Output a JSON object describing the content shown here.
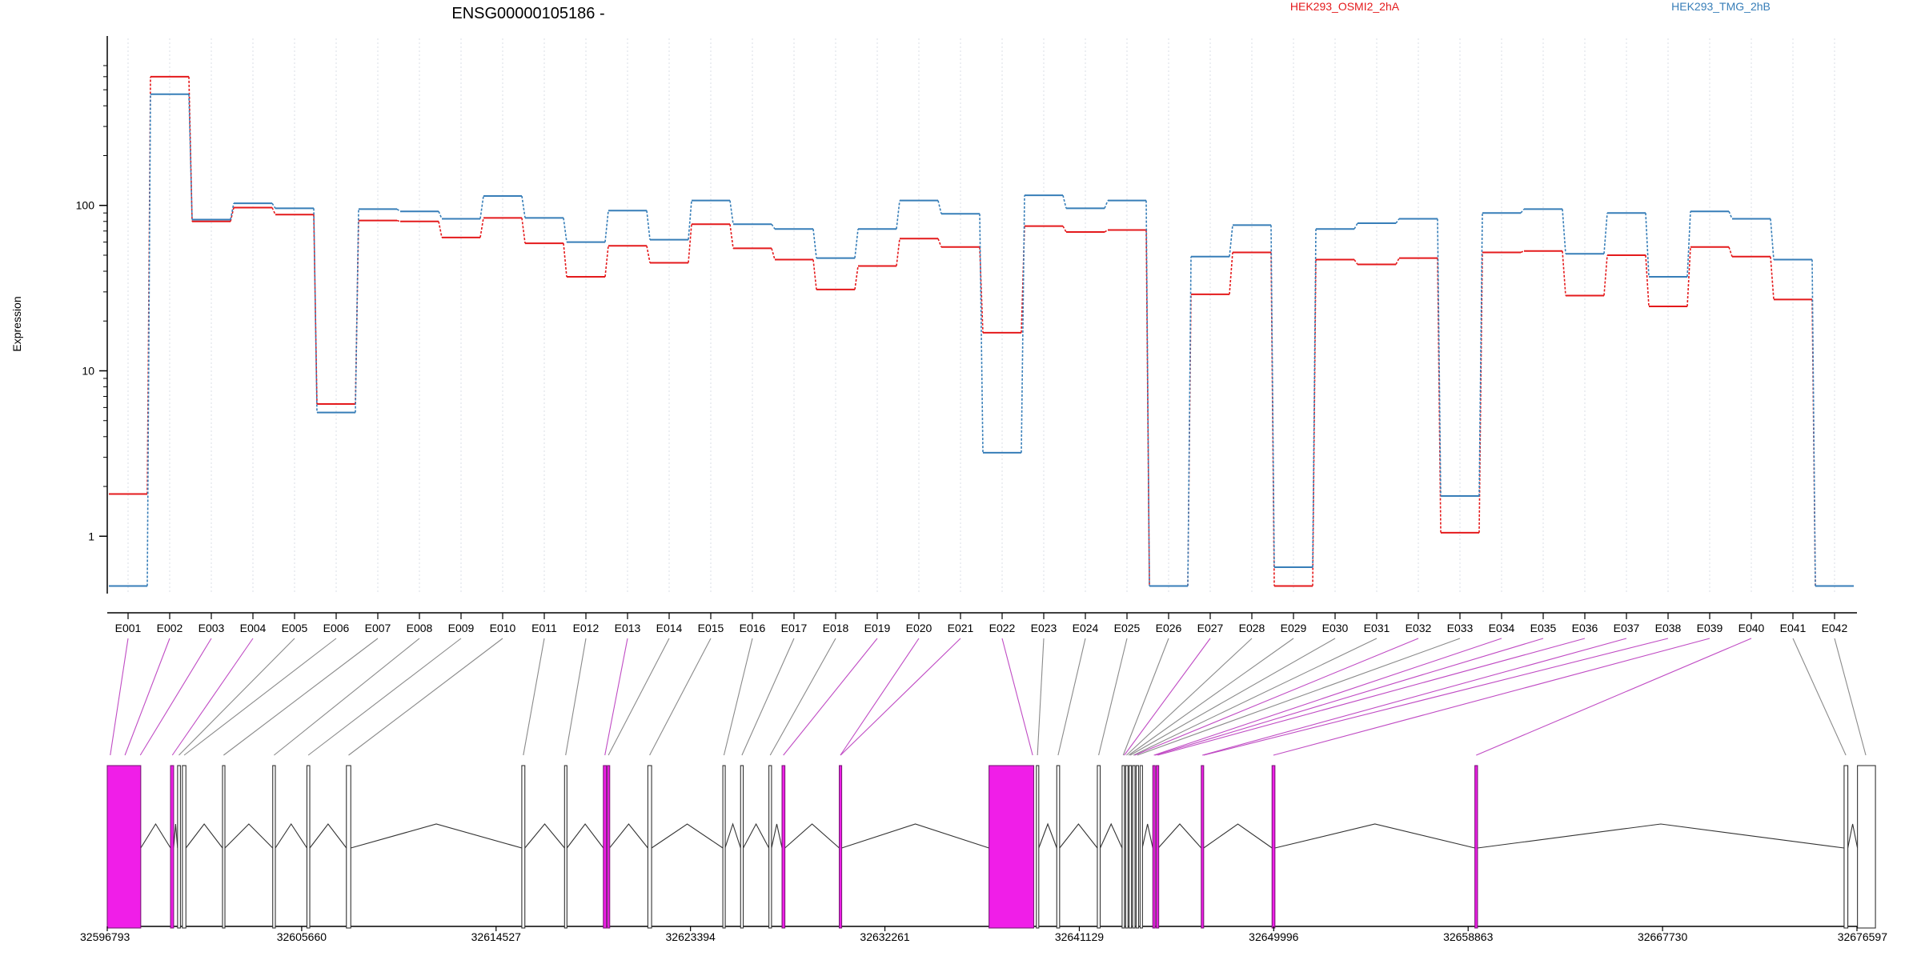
{
  "chart_data": {
    "type": "line",
    "title": "ENSG00000105186 -",
    "ylabel": "Expression",
    "xlabel": "",
    "yscale": "log",
    "ylim": [
      0.45,
      800
    ],
    "yticks": [
      1,
      10,
      100
    ],
    "grid": "vertical dotted lines at exon positions",
    "legend_position": "top",
    "categories": [
      "E001",
      "E002",
      "E003",
      "E004",
      "E005",
      "E006",
      "E007",
      "E008",
      "E009",
      "E010",
      "E011",
      "E012",
      "E013",
      "E014",
      "E015",
      "E016",
      "E017",
      "E018",
      "E019",
      "E020",
      "E021",
      "E022",
      "E023",
      "E024",
      "E025",
      "E026",
      "E027",
      "E028",
      "E029",
      "E030",
      "E031",
      "E032",
      "E033",
      "E034",
      "E035",
      "E036",
      "E037",
      "E038",
      "E039",
      "E040",
      "E041",
      "E042"
    ],
    "series": [
      {
        "name": "HEK293_OSMI2_2hA",
        "color": "#e41a1c",
        "values": [
          1.8,
          600,
          80,
          97,
          88,
          6.3,
          81,
          80,
          64,
          84,
          59,
          37,
          57,
          45,
          77,
          55,
          47,
          31,
          43,
          63,
          56,
          17,
          75,
          69,
          71,
          0.5,
          29,
          52,
          0.5,
          47,
          44,
          48,
          1.05,
          52,
          53,
          28.5,
          50,
          24.5,
          56,
          49,
          27,
          0.5
        ]
      },
      {
        "name": "HEK293_TMG_2hB",
        "color": "#377eb8",
        "values": [
          0.5,
          470,
          82,
          103,
          96,
          5.6,
          95,
          92,
          83,
          114,
          84,
          60,
          93,
          62,
          107,
          77,
          72,
          48,
          72,
          107,
          89,
          3.2,
          115,
          96,
          107,
          0.5,
          49,
          76,
          0.65,
          72,
          78,
          83,
          1.75,
          90,
          95,
          51,
          90,
          37,
          92,
          83,
          47,
          0.5
        ]
      }
    ],
    "gene_model": {
      "genomic_ticks": [
        "32596793",
        "32605660",
        "32614527",
        "32623394",
        "32632261",
        "32641129",
        "32649996",
        "32658863",
        "32667730",
        "32676597"
      ],
      "range": [
        32596793,
        32676597
      ],
      "exons": [
        {
          "start": 32596793,
          "end": 32598320,
          "highlight": true
        },
        {
          "start": 32599680,
          "end": 32599820,
          "highlight": true
        },
        {
          "start": 32600000,
          "end": 32600130,
          "highlight": false
        },
        {
          "start": 32600220,
          "end": 32600380,
          "highlight": false
        },
        {
          "start": 32602050,
          "end": 32602160,
          "highlight": false
        },
        {
          "start": 32604340,
          "end": 32604460,
          "highlight": false
        },
        {
          "start": 32605900,
          "end": 32606030,
          "highlight": false
        },
        {
          "start": 32607700,
          "end": 32607900,
          "highlight": false
        },
        {
          "start": 32615700,
          "end": 32615840,
          "highlight": false
        },
        {
          "start": 32617650,
          "end": 32617760,
          "highlight": false
        },
        {
          "start": 32619420,
          "end": 32619560,
          "highlight": true
        },
        {
          "start": 32619600,
          "end": 32619700,
          "highlight": true
        },
        {
          "start": 32621450,
          "end": 32621620,
          "highlight": false
        },
        {
          "start": 32624870,
          "end": 32624970,
          "highlight": false
        },
        {
          "start": 32625680,
          "end": 32625800,
          "highlight": false
        },
        {
          "start": 32626970,
          "end": 32627090,
          "highlight": false
        },
        {
          "start": 32627570,
          "end": 32627700,
          "highlight": true
        },
        {
          "start": 32630180,
          "end": 32630290,
          "highlight": true
        },
        {
          "start": 32637010,
          "end": 32639050,
          "highlight": true
        },
        {
          "start": 32639170,
          "end": 32639280,
          "highlight": false
        },
        {
          "start": 32640100,
          "end": 32640230,
          "highlight": false
        },
        {
          "start": 32641950,
          "end": 32642080,
          "highlight": false
        },
        {
          "start": 32643080,
          "end": 32643180,
          "highlight": false
        },
        {
          "start": 32643240,
          "end": 32643340,
          "highlight": false
        },
        {
          "start": 32643400,
          "end": 32643500,
          "highlight": false
        },
        {
          "start": 32643560,
          "end": 32643650,
          "highlight": false
        },
        {
          "start": 32643720,
          "end": 32643820,
          "highlight": false
        },
        {
          "start": 32643900,
          "end": 32644000,
          "highlight": false
        },
        {
          "start": 32644480,
          "end": 32644580,
          "highlight": true
        },
        {
          "start": 32644640,
          "end": 32644730,
          "highlight": true
        },
        {
          "start": 32646690,
          "end": 32646800,
          "highlight": true
        },
        {
          "start": 32649920,
          "end": 32650050,
          "highlight": true
        },
        {
          "start": 32659170,
          "end": 32659290,
          "highlight": true
        },
        {
          "start": 32676010,
          "end": 32676180,
          "highlight": false
        },
        {
          "start": 32676620,
          "end": 32677440,
          "highlight": false
        }
      ],
      "exon_links": [
        {
          "from": 0,
          "to": 32596930,
          "highlight": true
        },
        {
          "from": 1,
          "to": 32597600,
          "highlight": true
        },
        {
          "from": 2,
          "to": 32598300,
          "highlight": true
        },
        {
          "from": 3,
          "to": 32599760,
          "highlight": true
        },
        {
          "from": 4,
          "to": 32600060,
          "highlight": false
        },
        {
          "from": 5,
          "to": 32600300,
          "highlight": false
        },
        {
          "from": 6,
          "to": 32602100,
          "highlight": false
        },
        {
          "from": 7,
          "to": 32604400,
          "highlight": false
        },
        {
          "from": 8,
          "to": 32605960,
          "highlight": false
        },
        {
          "from": 9,
          "to": 32607800,
          "highlight": false
        },
        {
          "from": 10,
          "to": 32615770,
          "highlight": false
        },
        {
          "from": 11,
          "to": 32617700,
          "highlight": false
        },
        {
          "from": 12,
          "to": 32619490,
          "highlight": true
        },
        {
          "from": 13,
          "to": 32619650,
          "highlight": false
        },
        {
          "from": 14,
          "to": 32621530,
          "highlight": false
        },
        {
          "from": 15,
          "to": 32624920,
          "highlight": false
        },
        {
          "from": 16,
          "to": 32625740,
          "highlight": false
        },
        {
          "from": 17,
          "to": 32627030,
          "highlight": false
        },
        {
          "from": 18,
          "to": 32627630,
          "highlight": true
        },
        {
          "from": 19,
          "to": 32630230,
          "highlight": true
        },
        {
          "from": 20,
          "to": 32630240,
          "highlight": true
        },
        {
          "from": 21,
          "to": 32639000,
          "highlight": true
        },
        {
          "from": 22,
          "to": 32639220,
          "highlight": false
        },
        {
          "from": 23,
          "to": 32640160,
          "highlight": false
        },
        {
          "from": 24,
          "to": 32642010,
          "highlight": false
        },
        {
          "from": 25,
          "to": 32643130,
          "highlight": false
        },
        {
          "from": 26,
          "to": 32643180,
          "highlight": true
        },
        {
          "from": 27,
          "to": 32643280,
          "highlight": false
        },
        {
          "from": 28,
          "to": 32643380,
          "highlight": false
        },
        {
          "from": 29,
          "to": 32643450,
          "highlight": false
        },
        {
          "from": 30,
          "to": 32643600,
          "highlight": false
        },
        {
          "from": 31,
          "to": 32643650,
          "highlight": true
        },
        {
          "from": 32,
          "to": 32643770,
          "highlight": false
        },
        {
          "from": 33,
          "to": 32644530,
          "highlight": true
        },
        {
          "from": 34,
          "to": 32644590,
          "highlight": true
        },
        {
          "from": 35,
          "to": 32644700,
          "highlight": true
        },
        {
          "from": 36,
          "to": 32646740,
          "highlight": true
        },
        {
          "from": 37,
          "to": 32646800,
          "highlight": true
        },
        {
          "from": 38,
          "to": 32649980,
          "highlight": true
        },
        {
          "from": 39,
          "to": 32659230,
          "highlight": true
        },
        {
          "from": 40,
          "to": 32676090,
          "highlight": false
        },
        {
          "from": 41,
          "to": 32677000,
          "highlight": false
        }
      ]
    }
  }
}
